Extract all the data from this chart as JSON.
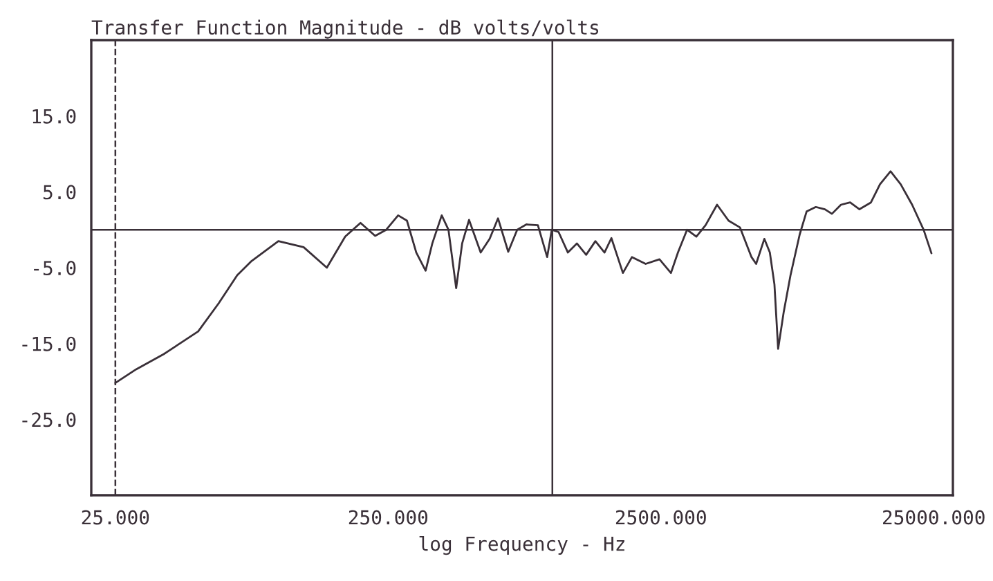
{
  "chart_data": {
    "type": "line",
    "title": "Transfer Function Magnitude - dB volts/volts",
    "xlabel": "log Frequency - Hz",
    "log": "x",
    "xlim": [
      20.4,
      29400
    ],
    "xticks": [
      {
        "value": 25,
        "label": "25.000"
      },
      {
        "value": 250,
        "label": "250.000"
      },
      {
        "value": 2500,
        "label": "2500.000"
      },
      {
        "value": 25000,
        "label": "25000.000"
      }
    ],
    "ylim": [
      -35,
      25
    ],
    "yticks": [
      {
        "value": 15,
        "label": "15.0"
      },
      {
        "value": 5,
        "label": "5.0"
      },
      {
        "value": -5,
        "label": "-5.0"
      },
      {
        "value": -15,
        "label": "-15.0"
      },
      {
        "value": -25,
        "label": "-25.0"
      }
    ],
    "grid": false,
    "legend": false,
    "marker": "none",
    "line_style": "solid",
    "ref_lines": [
      {
        "axis": "y",
        "value": 0,
        "color": "#3a3038",
        "line_style": "solid"
      },
      {
        "axis": "x",
        "value": 1000,
        "color": "#3a3038",
        "line_style": "solid"
      },
      {
        "axis": "x",
        "value": 25,
        "color": "#3a3038",
        "line_style": "dashed"
      }
    ],
    "series": [
      {
        "color": "#3a3038",
        "x": [
          25,
          29.8,
          37.6,
          50.3,
          59.8,
          69.9,
          78.5,
          99,
          122.5,
          149,
          174,
          198,
          224,
          246,
          272,
          293,
          317,
          343,
          363,
          393,
          416,
          444,
          467,
          495,
          546,
          589,
          632,
          689,
          743,
          803,
          885,
          957,
          995,
          1054,
          1140,
          1230,
          1330,
          1438,
          1553,
          1646,
          1814,
          1958,
          2198,
          2470,
          2720,
          2887,
          3117,
          3372,
          3644,
          4016,
          4425,
          4875,
          5370,
          5585,
          5985,
          6270,
          6518,
          6725,
          7045,
          7465,
          8070,
          8550,
          9240,
          9980,
          10590,
          11430,
          12350,
          13360,
          14720,
          15890,
          17370,
          18920,
          20840,
          22960,
          24530
        ],
        "values": [
          -20.2,
          -18.4,
          -16.4,
          -13.4,
          -9.7,
          -6.0,
          -4.2,
          -1.5,
          -2.3,
          -5.0,
          -0.9,
          0.9,
          -0.8,
          0,
          1.9,
          1.2,
          -3.0,
          -5.4,
          -1.8,
          1.9,
          0,
          -7.7,
          -1.8,
          1.3,
          -3.0,
          -1.2,
          1.5,
          -2.9,
          0,
          0.7,
          0.6,
          -3.6,
          0,
          -0.3,
          -3.0,
          -1.8,
          -3.3,
          -1.5,
          -3.0,
          -1.1,
          -5.7,
          -3.6,
          -4.5,
          -3.9,
          -5.7,
          -3.0,
          0,
          -0.9,
          0.6,
          3.3,
          1.2,
          0.3,
          -3.6,
          -4.5,
          -1.2,
          -3.0,
          -7.2,
          -15.7,
          -10.9,
          -6.0,
          -0.6,
          2.4,
          3.0,
          2.7,
          2.1,
          3.3,
          3.6,
          2.7,
          3.6,
          6.0,
          7.7,
          6.0,
          3.3,
          0,
          -3.1
        ]
      }
    ]
  }
}
